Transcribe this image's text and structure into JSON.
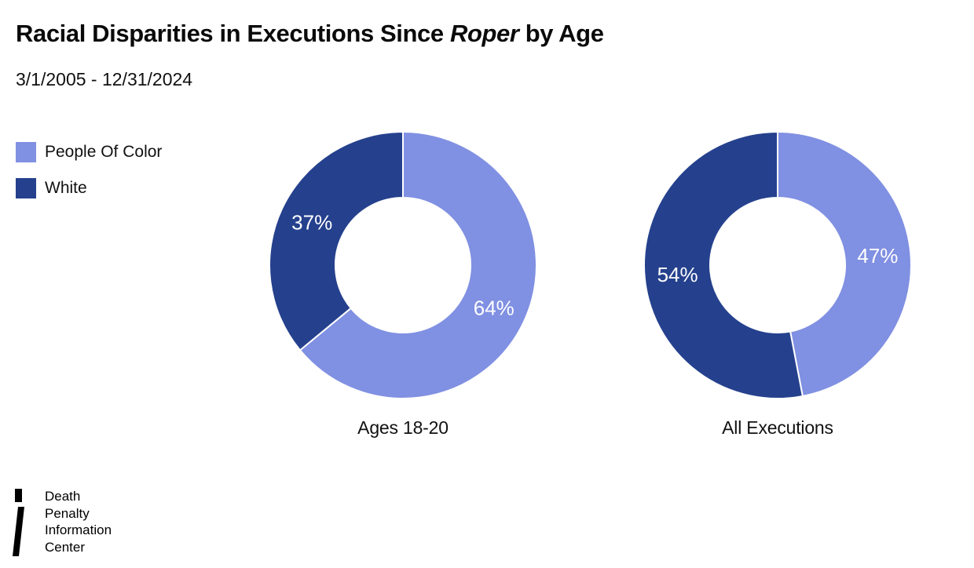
{
  "header": {
    "title_prefix": "Racial Disparities in Executions Since ",
    "title_italic": "Roper",
    "title_suffix": " by Age",
    "subtitle": "3/1/2005 - 12/31/2024"
  },
  "legend": {
    "items": [
      {
        "label": "People Of Color",
        "color": "#8090E2"
      },
      {
        "label": "White",
        "color": "#25418D"
      }
    ]
  },
  "chart_data": [
    {
      "type": "pie",
      "subtype": "donut",
      "title": "Ages 18-20",
      "categories": [
        "People Of Color",
        "White"
      ],
      "values": [
        64,
        37
      ],
      "labels": [
        "64%",
        "37%"
      ],
      "colors": [
        "#8090E2",
        "#25418D"
      ],
      "label_color": "#FFFFFF",
      "start_angle_deg": 0,
      "direction": "clockwise",
      "inner_radius_ratio": 0.5,
      "legend_position": "top-left"
    },
    {
      "type": "pie",
      "subtype": "donut",
      "title": "All Executions",
      "categories": [
        "People Of Color",
        "White"
      ],
      "values": [
        47,
        54
      ],
      "labels": [
        "47%",
        "54%"
      ],
      "colors": [
        "#8090E2",
        "#25418D"
      ],
      "label_color": "#FFFFFF",
      "start_angle_deg": 0,
      "direction": "clockwise",
      "inner_radius_ratio": 0.5,
      "legend_position": "top-left"
    }
  ],
  "footer": {
    "org_name_lines": [
      "Death",
      "Penalty",
      "Information",
      "Center"
    ]
  }
}
